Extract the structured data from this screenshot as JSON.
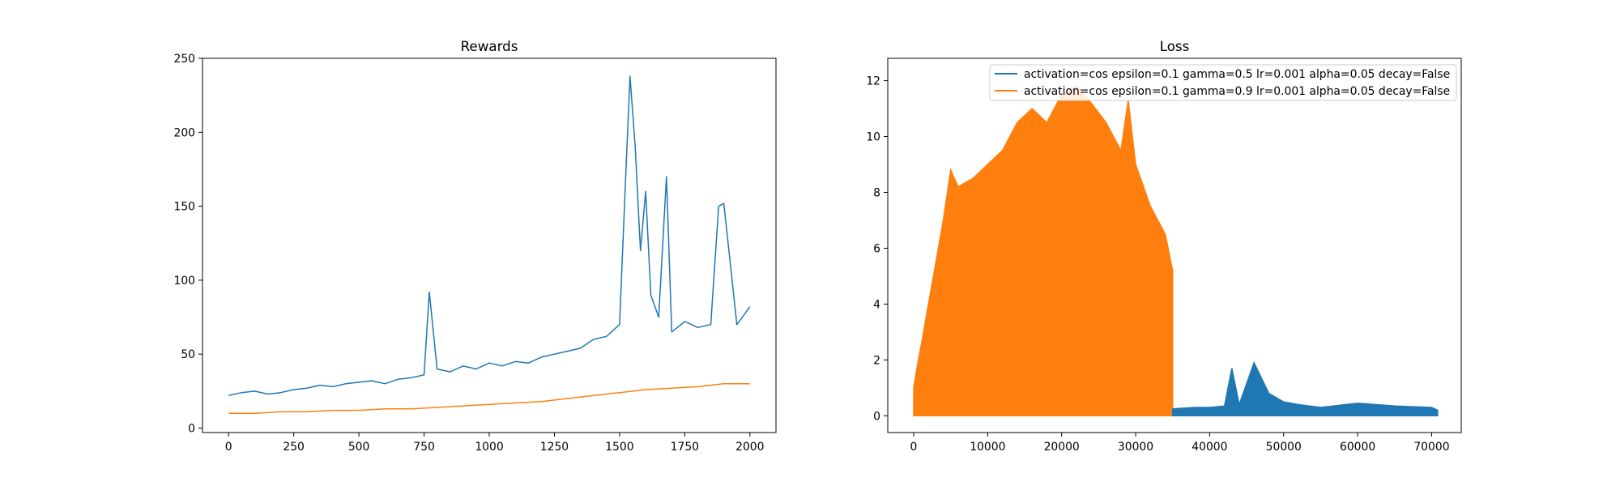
{
  "chart_data": [
    {
      "type": "line",
      "title": "Rewards",
      "xlabel": "",
      "ylabel": "",
      "xlim": [
        -100,
        2100
      ],
      "ylim": [
        -3,
        250
      ],
      "xticks": [
        0,
        250,
        500,
        750,
        1000,
        1250,
        1500,
        1750,
        2000
      ],
      "yticks": [
        0,
        50,
        100,
        150,
        200,
        250
      ],
      "grid": false,
      "series": [
        {
          "color": "#1f77b4",
          "x": [
            0,
            50,
            100,
            150,
            200,
            250,
            300,
            350,
            400,
            450,
            500,
            550,
            600,
            650,
            700,
            750,
            770,
            800,
            850,
            900,
            950,
            1000,
            1050,
            1100,
            1150,
            1200,
            1250,
            1300,
            1350,
            1400,
            1450,
            1500,
            1520,
            1540,
            1560,
            1580,
            1600,
            1620,
            1650,
            1680,
            1700,
            1750,
            1800,
            1850,
            1880,
            1900,
            1950,
            2000
          ],
          "values": [
            22,
            24,
            25,
            23,
            24,
            26,
            27,
            29,
            28,
            30,
            31,
            32,
            30,
            33,
            34,
            36,
            92,
            40,
            38,
            42,
            40,
            44,
            42,
            45,
            44,
            48,
            50,
            52,
            54,
            60,
            62,
            70,
            155,
            238,
            190,
            120,
            160,
            90,
            75,
            170,
            65,
            72,
            68,
            70,
            150,
            152,
            70,
            82
          ]
        },
        {
          "color": "#ff7f0e",
          "x": [
            0,
            100,
            200,
            300,
            400,
            500,
            600,
            700,
            800,
            900,
            1000,
            1100,
            1200,
            1300,
            1400,
            1500,
            1600,
            1700,
            1800,
            1900,
            2000
          ],
          "values": [
            10,
            10,
            11,
            11,
            12,
            12,
            13,
            13,
            14,
            15,
            16,
            17,
            18,
            20,
            22,
            24,
            26,
            27,
            28,
            30,
            30
          ]
        }
      ]
    },
    {
      "type": "area",
      "title": "Loss",
      "xlabel": "",
      "ylabel": "",
      "xlim": [
        -3500,
        74000
      ],
      "ylim": [
        -0.6,
        12.8
      ],
      "xticks": [
        0,
        10000,
        20000,
        30000,
        40000,
        50000,
        60000,
        70000
      ],
      "yticks": [
        0,
        2,
        4,
        6,
        8,
        10,
        12
      ],
      "grid": false,
      "legend_position": "top-right",
      "series": [
        {
          "name": "activation=cos epsilon=0.1 gamma=0.5 lr=0.001 alpha=0.05 decay=False",
          "color": "#1f77b4",
          "x": [
            35000,
            38000,
            40000,
            42000,
            43000,
            44000,
            46000,
            48000,
            50000,
            52000,
            55000,
            60000,
            65000,
            70000,
            70800
          ],
          "values": [
            0.25,
            0.3,
            0.3,
            0.35,
            1.7,
            0.4,
            1.9,
            0.8,
            0.5,
            0.4,
            0.3,
            0.45,
            0.35,
            0.3,
            0.2
          ]
        },
        {
          "name": "activation=cos epsilon=0.1 gamma=0.9 lr=0.001 alpha=0.05 decay=False",
          "color": "#ff7f0e",
          "x": [
            0,
            500,
            1000,
            2000,
            3000,
            4000,
            5000,
            6000,
            8000,
            10000,
            12000,
            14000,
            16000,
            18000,
            20000,
            22000,
            24000,
            26000,
            28000,
            29000,
            30000,
            32000,
            34000,
            35000
          ],
          "values": [
            1.0,
            1.8,
            2.5,
            4.0,
            5.5,
            7.0,
            8.8,
            8.2,
            8.5,
            9.0,
            9.5,
            10.5,
            11.0,
            10.5,
            11.5,
            11.8,
            11.2,
            10.5,
            9.5,
            11.3,
            9.0,
            7.5,
            6.5,
            5.2
          ]
        }
      ]
    }
  ]
}
